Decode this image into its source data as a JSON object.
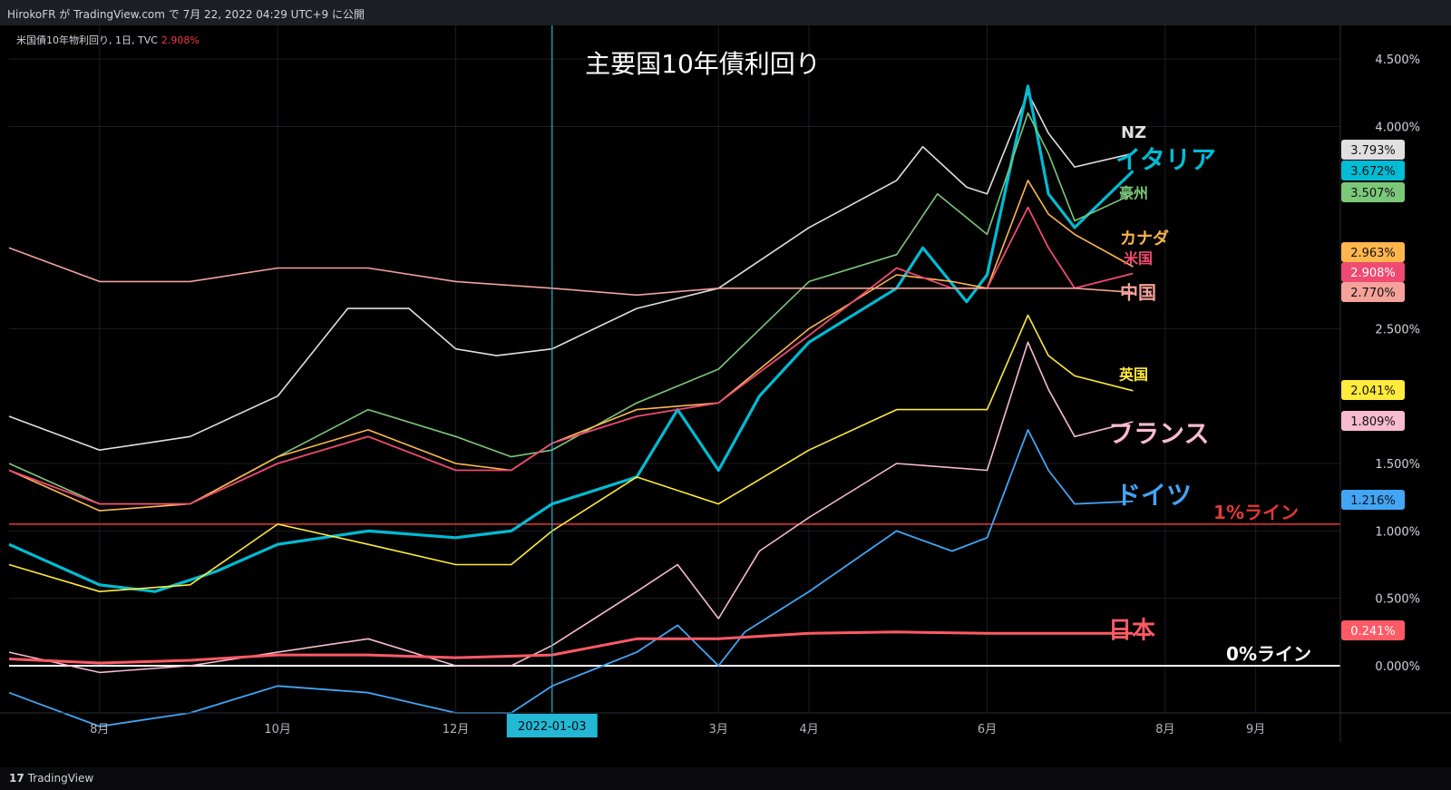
{
  "header": {
    "publish_text": "HirokoFR が TradingView.com で 7月 22, 2022 04:29 UTC+9 に公開"
  },
  "symbol": {
    "text": "米国債10年物利回り, 1日, TVC",
    "value": "2.908%"
  },
  "footer": {
    "logo_mark": "17",
    "logo_text": "TradingView"
  },
  "colors": {
    "background": "#000000",
    "grid": "#1c1c22",
    "nz": "#e0e0e0",
    "italy": "#00bcd4",
    "australia": "#7cc87a",
    "canada": "#ffb74d",
    "usa": "#f04a72",
    "china": "#f4a29a",
    "uk": "#ffeb3b",
    "france": "#f8bbd0",
    "germany": "#42a5f5",
    "japan": "#ff5a66",
    "one_pct_line": "#e53935",
    "zero_line": "#ffffff",
    "crosshair": "#22b8d6"
  },
  "chart_data": {
    "type": "line",
    "title": "主要国10年債利回り",
    "x_axis": {
      "start": "2021-07-01",
      "end": "2022-09-30",
      "tick_labels": [
        "8月",
        "10月",
        "12月",
        "3月",
        "4月",
        "6月",
        "8月",
        "9月"
      ],
      "tick_dates": [
        "2021-08-01",
        "2021-10-01",
        "2021-12-01",
        "2022-03-01",
        "2022-04-01",
        "2022-06-01",
        "2022-08-01",
        "2022-09-01"
      ]
    },
    "y_axis": {
      "min": -0.35,
      "max": 4.75,
      "tick_labels": [
        "0.000%",
        "0.500%",
        "1.000%",
        "1.500%",
        "2.500%",
        "4.000%",
        "4.500%"
      ],
      "tick_values": [
        0,
        0.5,
        1.0,
        1.5,
        2.5,
        4.0,
        4.5
      ]
    },
    "grid": true,
    "crosshair": {
      "date": "2022-01-03",
      "label": "2022-01-03"
    },
    "reference_lines": [
      {
        "label": "1%ライン",
        "value": 1.05
      },
      {
        "label": "0%ライン",
        "value": 0
      }
    ],
    "series": [
      {
        "name": "NZ",
        "last": "3.793%",
        "dates": [
          "2021-07-01",
          "2021-08-01",
          "2021-09-01",
          "2021-10-01",
          "2021-10-25",
          "2021-11-15",
          "2021-12-01",
          "2021-12-15",
          "2022-01-03",
          "2022-02-01",
          "2022-03-01",
          "2022-04-01",
          "2022-05-01",
          "2022-05-10",
          "2022-05-25",
          "2022-06-01",
          "2022-06-15",
          "2022-06-22",
          "2022-07-01",
          "2022-07-21"
        ],
        "values": [
          1.85,
          1.6,
          1.7,
          2.0,
          2.65,
          2.65,
          2.35,
          2.3,
          2.35,
          2.65,
          2.8,
          3.25,
          3.6,
          3.85,
          3.55,
          3.5,
          4.25,
          3.95,
          3.7,
          3.8
        ]
      },
      {
        "name": "イタリア",
        "last": "3.672%",
        "dates": [
          "2021-07-01",
          "2021-08-01",
          "2021-08-20",
          "2021-09-10",
          "2021-10-01",
          "2021-11-01",
          "2021-12-01",
          "2021-12-20",
          "2022-01-03",
          "2022-02-01",
          "2022-02-15",
          "2022-03-01",
          "2022-03-15",
          "2022-04-01",
          "2022-05-01",
          "2022-05-10",
          "2022-05-25",
          "2022-06-01",
          "2022-06-15",
          "2022-06-22",
          "2022-07-01",
          "2022-07-21"
        ],
        "values": [
          0.9,
          0.6,
          0.55,
          0.7,
          0.9,
          1.0,
          0.95,
          1.0,
          1.2,
          1.4,
          1.9,
          1.45,
          2.0,
          2.4,
          2.8,
          3.1,
          2.7,
          2.9,
          4.3,
          3.5,
          3.25,
          3.67
        ]
      },
      {
        "name": "豪州",
        "last": "3.507%",
        "dates": [
          "2021-07-01",
          "2021-08-01",
          "2021-09-01",
          "2021-10-01",
          "2021-11-01",
          "2021-12-01",
          "2021-12-20",
          "2022-01-03",
          "2022-02-01",
          "2022-03-01",
          "2022-04-01",
          "2022-05-01",
          "2022-05-15",
          "2022-06-01",
          "2022-06-15",
          "2022-06-22",
          "2022-07-01",
          "2022-07-21"
        ],
        "values": [
          1.5,
          1.2,
          1.2,
          1.55,
          1.9,
          1.7,
          1.55,
          1.6,
          1.95,
          2.2,
          2.85,
          3.05,
          3.5,
          3.2,
          4.1,
          3.8,
          3.3,
          3.5
        ]
      },
      {
        "name": "カナダ",
        "last": "2.963%",
        "dates": [
          "2021-07-01",
          "2021-08-01",
          "2021-09-01",
          "2021-10-01",
          "2021-11-01",
          "2021-12-01",
          "2021-12-20",
          "2022-01-03",
          "2022-02-01",
          "2022-03-01",
          "2022-04-01",
          "2022-05-01",
          "2022-05-20",
          "2022-06-01",
          "2022-06-15",
          "2022-06-22",
          "2022-07-01",
          "2022-07-21"
        ],
        "values": [
          1.45,
          1.15,
          1.2,
          1.55,
          1.75,
          1.5,
          1.45,
          1.65,
          1.9,
          1.95,
          2.5,
          2.9,
          2.85,
          2.8,
          3.6,
          3.35,
          3.2,
          2.96
        ]
      },
      {
        "name": "米国",
        "last": "2.908%",
        "dates": [
          "2021-07-01",
          "2021-08-01",
          "2021-09-01",
          "2021-10-01",
          "2021-11-01",
          "2021-12-01",
          "2021-12-20",
          "2022-01-03",
          "2022-02-01",
          "2022-03-01",
          "2022-04-01",
          "2022-05-01",
          "2022-05-20",
          "2022-06-01",
          "2022-06-15",
          "2022-06-22",
          "2022-07-01",
          "2022-07-21"
        ],
        "values": [
          1.45,
          1.2,
          1.2,
          1.5,
          1.7,
          1.45,
          1.45,
          1.65,
          1.85,
          1.95,
          2.45,
          2.95,
          2.8,
          2.8,
          3.4,
          3.1,
          2.8,
          2.91
        ]
      },
      {
        "name": "中国",
        "last": "2.770%",
        "dates": [
          "2021-07-01",
          "2021-08-01",
          "2021-09-01",
          "2021-10-01",
          "2021-11-01",
          "2021-12-01",
          "2022-01-03",
          "2022-02-01",
          "2022-03-01",
          "2022-04-01",
          "2022-05-01",
          "2022-06-01",
          "2022-07-01",
          "2022-07-21"
        ],
        "values": [
          3.1,
          2.85,
          2.85,
          2.95,
          2.95,
          2.85,
          2.8,
          2.75,
          2.8,
          2.8,
          2.8,
          2.8,
          2.8,
          2.77
        ]
      },
      {
        "name": "英国",
        "last": "2.041%",
        "dates": [
          "2021-07-01",
          "2021-08-01",
          "2021-09-01",
          "2021-10-01",
          "2021-11-01",
          "2021-12-01",
          "2021-12-20",
          "2022-01-03",
          "2022-02-01",
          "2022-03-01",
          "2022-04-01",
          "2022-05-01",
          "2022-06-01",
          "2022-06-15",
          "2022-06-22",
          "2022-07-01",
          "2022-07-21"
        ],
        "values": [
          0.75,
          0.55,
          0.6,
          1.05,
          0.9,
          0.75,
          0.75,
          1.0,
          1.4,
          1.2,
          1.6,
          1.9,
          1.9,
          2.6,
          2.3,
          2.15,
          2.04
        ]
      },
      {
        "name": "フランス",
        "last": "1.809%",
        "dates": [
          "2021-07-01",
          "2021-08-01",
          "2021-09-01",
          "2021-10-01",
          "2021-11-01",
          "2021-12-01",
          "2021-12-20",
          "2022-01-03",
          "2022-02-01",
          "2022-02-15",
          "2022-03-01",
          "2022-03-15",
          "2022-04-01",
          "2022-05-01",
          "2022-06-01",
          "2022-06-15",
          "2022-06-22",
          "2022-07-01",
          "2022-07-21"
        ],
        "values": [
          0.1,
          -0.05,
          0.0,
          0.1,
          0.2,
          0.0,
          -0.0,
          0.15,
          0.55,
          0.75,
          0.35,
          0.85,
          1.1,
          1.5,
          1.45,
          2.4,
          2.05,
          1.7,
          1.81
        ]
      },
      {
        "name": "ドイツ",
        "last": "1.216%",
        "dates": [
          "2021-07-01",
          "2021-08-01",
          "2021-09-01",
          "2021-10-01",
          "2021-11-01",
          "2021-12-01",
          "2021-12-20",
          "2022-01-03",
          "2022-02-01",
          "2022-02-15",
          "2022-03-01",
          "2022-03-10",
          "2022-04-01",
          "2022-05-01",
          "2022-05-20",
          "2022-06-01",
          "2022-06-15",
          "2022-06-22",
          "2022-07-01",
          "2022-07-21"
        ],
        "values": [
          -0.2,
          -0.45,
          -0.35,
          -0.15,
          -0.2,
          -0.35,
          -0.35,
          -0.15,
          0.1,
          0.3,
          0.0,
          0.25,
          0.55,
          1.0,
          0.85,
          0.95,
          1.75,
          1.45,
          1.2,
          1.22
        ]
      },
      {
        "name": "日本",
        "last": "0.241%",
        "dates": [
          "2021-07-01",
          "2021-08-01",
          "2021-09-01",
          "2021-10-01",
          "2021-11-01",
          "2021-12-01",
          "2022-01-03",
          "2022-02-01",
          "2022-03-01",
          "2022-04-01",
          "2022-05-01",
          "2022-06-01",
          "2022-07-01",
          "2022-07-21"
        ],
        "values": [
          0.05,
          0.02,
          0.04,
          0.08,
          0.08,
          0.06,
          0.08,
          0.2,
          0.2,
          0.24,
          0.25,
          0.24,
          0.24,
          0.24
        ]
      }
    ]
  }
}
